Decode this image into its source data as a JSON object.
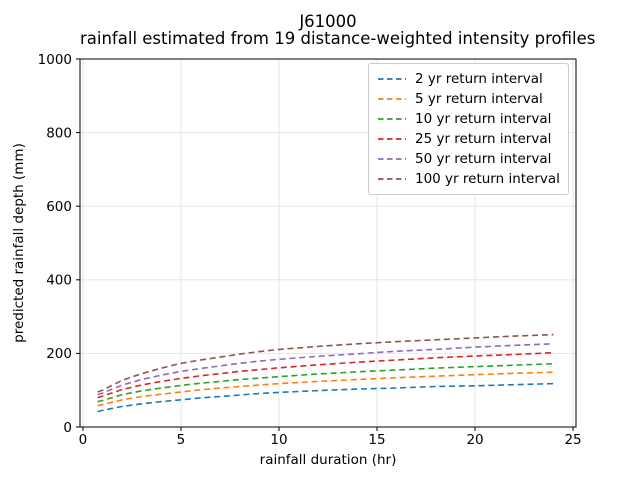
{
  "figure": {
    "background": "#ffffff",
    "spine_color": "#000000",
    "grid_color": "#e6e6e6",
    "text_color": "#000000"
  },
  "chart_data": {
    "type": "line",
    "title_line1": "J61000",
    "title_line2": "rainfall estimated from 19 distance-weighted intensity profiles",
    "xlabel": "rainfall duration (hr)",
    "ylabel": "predicted rainfall depth (mm)",
    "xlim": [
      -0.15,
      25.15
    ],
    "ylim": [
      0,
      1000
    ],
    "xticks": [
      0,
      5,
      10,
      15,
      20,
      25
    ],
    "yticks": [
      0,
      200,
      400,
      600,
      800,
      1000
    ],
    "grid": true,
    "legend_position": "upper right",
    "line_style": "dashed",
    "x": [
      0.75,
      1,
      2,
      3,
      4,
      5,
      6,
      7,
      8,
      9,
      10,
      12,
      14,
      16,
      18,
      20,
      22,
      24
    ],
    "series": [
      {
        "name": "2 yr return interval",
        "color": "#1f77b4",
        "values": [
          42,
          45,
          56,
          63,
          69,
          74,
          79,
          83,
          87,
          91,
          94,
          99,
          103,
          106,
          110,
          112,
          115,
          118
        ]
      },
      {
        "name": "5 yr return interval",
        "color": "#ff7f0e",
        "values": [
          58,
          61,
          74,
          83,
          89,
          95,
          101,
          106,
          110,
          114,
          118,
          124,
          129,
          134,
          138,
          142,
          146,
          149
        ]
      },
      {
        "name": "10 yr return interval",
        "color": "#2ca02c",
        "values": [
          69,
          72,
          88,
          98,
          106,
          113,
          119,
          124,
          129,
          133,
          137,
          144,
          150,
          155,
          160,
          164,
          168,
          172
        ]
      },
      {
        "name": "25 yr return interval",
        "color": "#d62728",
        "values": [
          80,
          84,
          102,
          114,
          124,
          132,
          139,
          145,
          151,
          156,
          161,
          169,
          176,
          182,
          188,
          193,
          197,
          202
        ]
      },
      {
        "name": "50 yr return interval",
        "color": "#9467bd",
        "values": [
          88,
          92,
          114,
          129,
          141,
          151,
          159,
          166,
          173,
          179,
          184,
          192,
          199,
          206,
          211,
          217,
          222,
          226
        ]
      },
      {
        "name": "100 yr return interval",
        "color": "#8c564b",
        "values": [
          95,
          100,
          127,
          145,
          160,
          173,
          182,
          190,
          198,
          205,
          211,
          219,
          226,
          232,
          237,
          242,
          247,
          251
        ]
      }
    ]
  }
}
